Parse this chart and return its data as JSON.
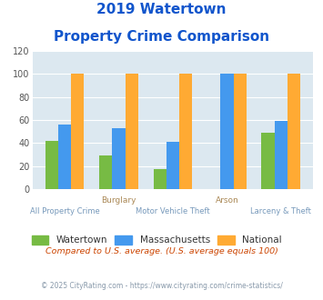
{
  "title_line1": "2019 Watertown",
  "title_line2": "Property Crime Comparison",
  "categories": [
    "All Property Crime",
    "Burglary",
    "Motor Vehicle Theft",
    "Arson",
    "Larceny & Theft"
  ],
  "category_labels_top": [
    "",
    "Burglary",
    "",
    "Arson",
    ""
  ],
  "category_labels_bottom": [
    "All Property Crime",
    "",
    "Motor Vehicle Theft",
    "",
    "Larceny & Theft"
  ],
  "watertown": [
    42,
    29,
    17,
    0,
    49
  ],
  "massachusetts": [
    56,
    53,
    41,
    100,
    59
  ],
  "national": [
    100,
    100,
    100,
    100,
    100
  ],
  "color_watertown": "#77bb44",
  "color_massachusetts": "#4499ee",
  "color_national": "#ffaa33",
  "color_bg_chart": "#dce8f0",
  "ylim": [
    0,
    120
  ],
  "yticks": [
    0,
    20,
    40,
    60,
    80,
    100,
    120
  ],
  "title_color": "#1155cc",
  "label_color_top": "#aa8855",
  "label_color_bottom": "#7799bb",
  "legend_labels": [
    "Watertown",
    "Massachusetts",
    "National"
  ],
  "footnote1": "Compared to U.S. average. (U.S. average equals 100)",
  "footnote2": "© 2025 CityRating.com - https://www.cityrating.com/crime-statistics/",
  "footnote1_color": "#cc4400",
  "footnote2_color": "#8899aa"
}
